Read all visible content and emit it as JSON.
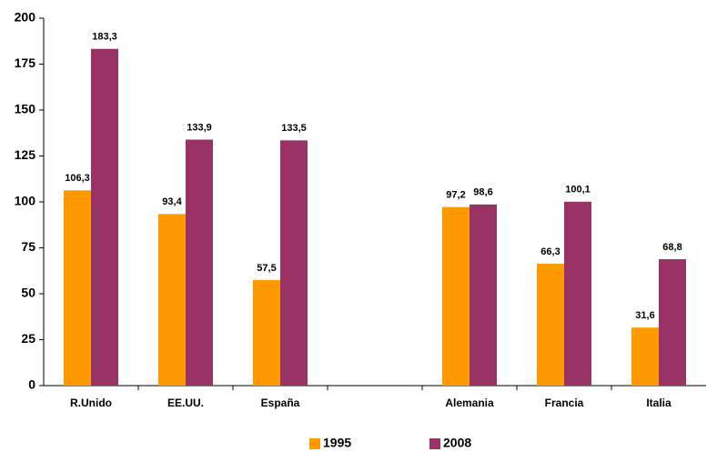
{
  "chart_data": {
    "type": "bar",
    "categories": [
      "R.Unido",
      "EE.UU.",
      "España",
      null,
      "Alemania",
      "Francia",
      "Italia"
    ],
    "series": [
      {
        "name": "1995",
        "color": "#ff9900",
        "values": [
          106.3,
          93.4,
          57.5,
          null,
          97.2,
          66.3,
          31.6
        ],
        "value_labels": [
          "106,3",
          "93,4",
          "57,5",
          null,
          "97,2",
          "66,3",
          "31,6"
        ]
      },
      {
        "name": "2008",
        "color": "#993366",
        "values": [
          183.3,
          133.9,
          133.5,
          null,
          98.6,
          100.1,
          68.8
        ],
        "value_labels": [
          "183,3",
          "133,9",
          "133,5",
          null,
          "98,6",
          "100,1",
          "68,8"
        ]
      }
    ],
    "ylim": [
      0,
      200
    ],
    "yticks": [
      0,
      25,
      50,
      75,
      100,
      125,
      150,
      175,
      200
    ],
    "grid": false,
    "legend": "bottom"
  }
}
